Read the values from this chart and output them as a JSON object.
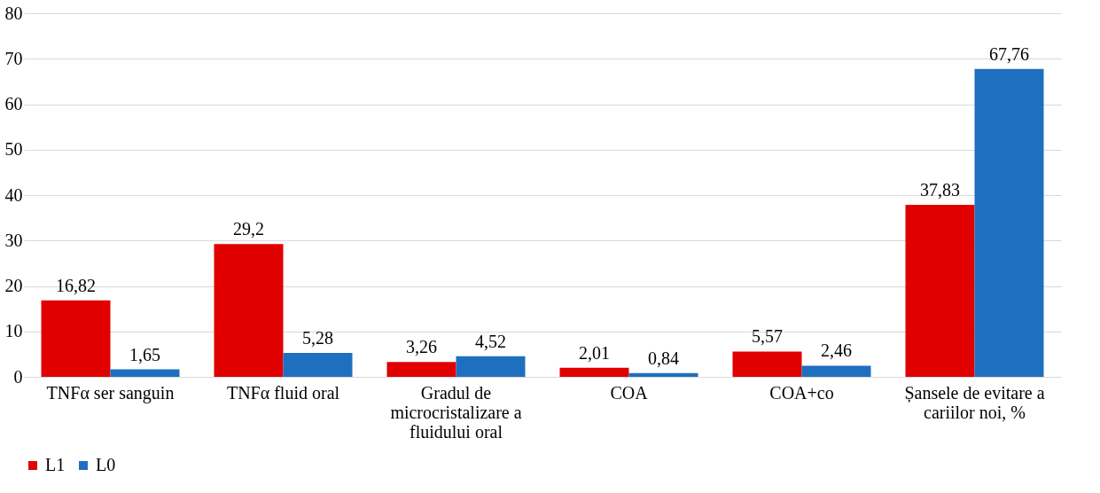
{
  "chart_data": {
    "type": "bar",
    "categories": [
      "TNFα ser sanguin",
      "TNFα fluid oral",
      "Gradul de microcristalizare a fluidului oral",
      "COA",
      "COA+co",
      "Șansele de evitare a cariilor noi, %"
    ],
    "series": [
      {
        "name": "L1",
        "color": "#e00000",
        "values": [
          16.82,
          29.2,
          3.26,
          2.01,
          5.57,
          37.83
        ],
        "value_labels": [
          "16,82",
          "29,2",
          "3,26",
          "2,01",
          "5,57",
          "37,83"
        ]
      },
      {
        "name": "L0",
        "color": "#1f6fc0",
        "values": [
          1.65,
          5.28,
          4.52,
          0.84,
          2.46,
          67.76
        ],
        "value_labels": [
          "1,65",
          "5,28",
          "4,52",
          "0,84",
          "2,46",
          "67,76"
        ]
      }
    ],
    "ylim": [
      0,
      80
    ],
    "yticks": [
      0,
      10,
      20,
      30,
      40,
      50,
      60,
      70,
      80
    ],
    "grid": "y",
    "legend": "bottom"
  }
}
